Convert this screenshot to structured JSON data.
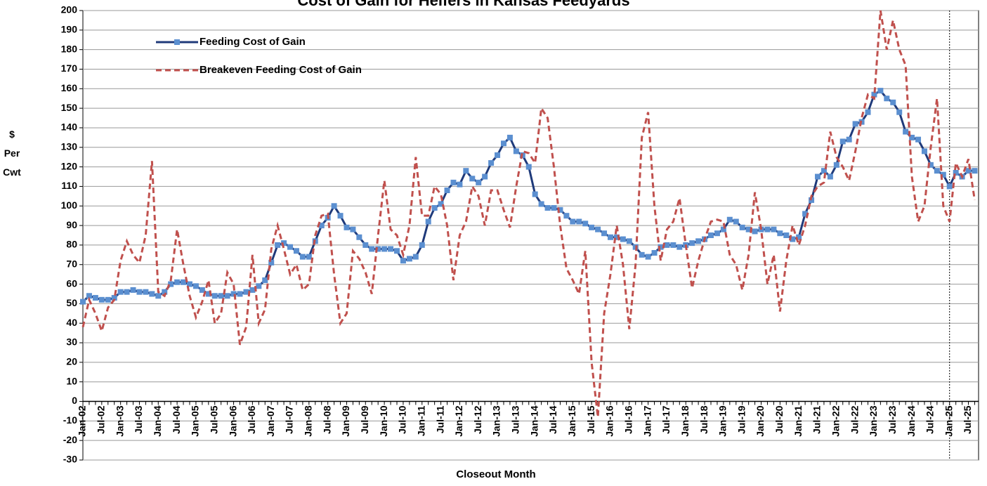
{
  "chart_data": {
    "type": "line",
    "title": "Cost of Gain for Heifers in Kansas Feedyards",
    "xlabel": "Closeout Month",
    "ylabel": "$ Per Cwt",
    "categories": [
      "Jan-02",
      null,
      null,
      "Jul-02",
      null,
      null,
      "Jan-03",
      null,
      null,
      "Jul-03",
      null,
      null,
      "Jan-04",
      null,
      null,
      "Jul-04",
      null,
      null,
      "Jan-05",
      null,
      null,
      "Jul-05",
      null,
      null,
      "Jan-06",
      null,
      null,
      "Jul-06",
      null,
      null,
      "Jan-07",
      null,
      null,
      "Jul-07",
      null,
      null,
      "Jan-08",
      null,
      null,
      "Jul-08",
      null,
      null,
      "Jan-09",
      null,
      null,
      "Jul-09",
      null,
      null,
      "Jan-10",
      null,
      null,
      "Jul-10",
      null,
      null,
      "Jan-11",
      null,
      null,
      "Jul-11",
      null,
      null,
      "Jan-12",
      null,
      null,
      "Jul-12",
      null,
      null,
      "Jan-13",
      null,
      null,
      "Jul-13",
      null,
      null,
      "Jan-14",
      null,
      null,
      "Jul-14",
      null,
      null,
      "Jan-15",
      null,
      null,
      "Jul-15",
      null,
      null,
      "Jan-16",
      null,
      null,
      "Jul-16",
      null,
      null,
      "Jan-17",
      null,
      null,
      "Jul-17",
      null,
      null,
      "Jan-18",
      null,
      null,
      "Jul-18",
      null,
      null,
      "Jan-19",
      null,
      null,
      "Jul-19",
      null,
      null,
      "Jan-20",
      null,
      null,
      "Jul-20",
      null,
      null,
      "Jan-21",
      null,
      null,
      "Jul-21",
      null,
      null,
      "Jan-22",
      null,
      null,
      "Jul-22",
      null,
      null,
      "Jan-23",
      null,
      null,
      "Jul-23",
      null,
      null,
      "Jan-24",
      null,
      null,
      "Jul-24",
      null,
      null,
      "Jan-25",
      null,
      null,
      "Jul-25",
      null
    ],
    "series": [
      {
        "name": "Feeding Cost of Gain",
        "color": "#1f3a7a",
        "marker_color": "#5b8fd0",
        "values": [
          51,
          54,
          53,
          52,
          52,
          53,
          56,
          56,
          57,
          56,
          56,
          55,
          54,
          56,
          60,
          61,
          61,
          60,
          59,
          57,
          55,
          54,
          54,
          54,
          55,
          55,
          56,
          57,
          59,
          62,
          71,
          80,
          81,
          79,
          77,
          74,
          74,
          82,
          90,
          94,
          100,
          95,
          89,
          88,
          84,
          80,
          78,
          78,
          78,
          78,
          77,
          72,
          73,
          74,
          80,
          92,
          99,
          101,
          108,
          112,
          111,
          118,
          114,
          112,
          115,
          122,
          126,
          132,
          135,
          128,
          126,
          120,
          106,
          101,
          99,
          99,
          98,
          95,
          92,
          92,
          91,
          89,
          88,
          86,
          84,
          84,
          83,
          82,
          79,
          75,
          74,
          76,
          79,
          80,
          80,
          79,
          80,
          81,
          82,
          83,
          85,
          86,
          88,
          93,
          92,
          89,
          88,
          87,
          88,
          88,
          88,
          86,
          85,
          83,
          84,
          96,
          103,
          115,
          118,
          115,
          121,
          133,
          134,
          142,
          143,
          148,
          157,
          159,
          155,
          153,
          148,
          138,
          135,
          134,
          128,
          121,
          118,
          116,
          110,
          117,
          115,
          118,
          118
        ]
      },
      {
        "name": "Breakeven Feeding Cost of Gain",
        "color": "#c0504d",
        "dashed": true,
        "values": [
          38,
          52,
          45,
          36,
          48,
          52,
          72,
          82,
          75,
          71,
          85,
          123,
          56,
          54,
          62,
          88,
          70,
          54,
          43,
          51,
          62,
          40,
          45,
          66,
          60,
          29,
          38,
          75,
          40,
          47,
          78,
          90,
          78,
          65,
          70,
          57,
          60,
          85,
          95,
          96,
          65,
          40,
          45,
          77,
          73,
          66,
          55,
          85,
          113,
          88,
          85,
          75,
          90,
          125,
          95,
          95,
          110,
          106,
          90,
          62,
          85,
          92,
          110,
          105,
          90,
          108,
          108,
          98,
          89,
          110,
          128,
          127,
          122,
          150,
          145,
          120,
          90,
          68,
          62,
          55,
          77,
          20,
          -8,
          45,
          65,
          90,
          70,
          37,
          70,
          135,
          148,
          100,
          72,
          88,
          92,
          104,
          80,
          58,
          72,
          83,
          92,
          93,
          92,
          75,
          70,
          57,
          75,
          107,
          88,
          60,
          75,
          46,
          72,
          90,
          80,
          90,
          105,
          110,
          112,
          138,
          125,
          120,
          113,
          128,
          145,
          157,
          155,
          200,
          180,
          195,
          180,
          172,
          115,
          92,
          100,
          130,
          155,
          100,
          92,
          122,
          115,
          124,
          103
        ]
      }
    ],
    "ylim": [
      -30,
      200
    ],
    "yticks": [
      -30,
      -20,
      -10,
      0,
      10,
      20,
      30,
      40,
      50,
      60,
      70,
      80,
      90,
      100,
      110,
      120,
      130,
      140,
      150,
      160,
      170,
      180,
      190,
      200
    ],
    "grid": true,
    "legend": "upper left"
  }
}
